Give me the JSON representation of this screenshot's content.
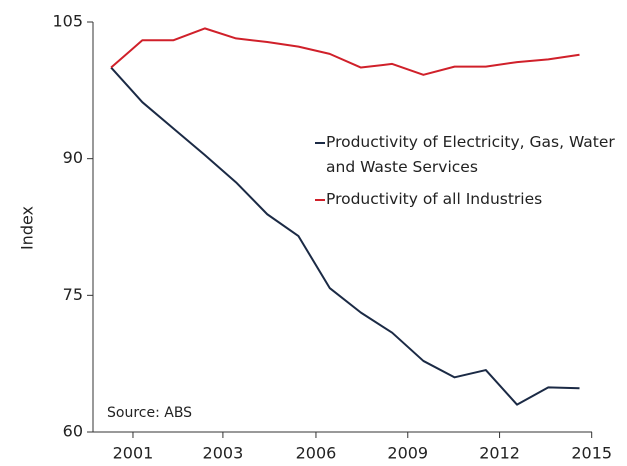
{
  "chart_data": {
    "type": "line",
    "y_label": "Index",
    "annotation": "Source: ABS",
    "x": [
      0,
      1,
      2,
      3,
      4,
      5,
      6,
      7,
      8,
      9,
      10,
      11,
      12,
      13,
      14,
      15
    ],
    "xlim": [
      -0.58,
      15.4
    ],
    "xticks": [
      {
        "value": 0.7,
        "label": "2001"
      },
      {
        "value": 3.58,
        "label": "2003"
      },
      {
        "value": 6.56,
        "label": "2006"
      },
      {
        "value": 9.5,
        "label": "2009"
      },
      {
        "value": 12.44,
        "label": "2012"
      },
      {
        "value": 15.39,
        "label": "2015"
      }
    ],
    "ylim": [
      60,
      105
    ],
    "yticks": [
      60,
      75,
      90,
      105
    ],
    "series": [
      {
        "name": "Productivity of Electricity, Gas, Water and Waste Services",
        "color": "#1b2a45",
        "values": [
          100,
          96.2,
          93.3,
          90.4,
          87.4,
          83.9,
          81.5,
          75.8,
          73.1,
          70.9,
          67.8,
          66.0,
          66.8,
          63.0,
          64.9,
          64.8
        ]
      },
      {
        "name": "Productivity of all Industries",
        "color": "#d0202a",
        "values": [
          100,
          103.0,
          103.0,
          104.3,
          103.2,
          102.8,
          102.3,
          101.5,
          100.0,
          100.4,
          99.2,
          100.1,
          100.1,
          100.6,
          100.9,
          101.4
        ]
      }
    ]
  }
}
